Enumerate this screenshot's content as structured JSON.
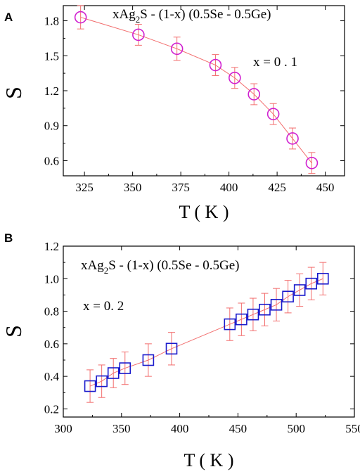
{
  "chart_data": [
    {
      "panel": "A",
      "type": "scatter",
      "title_parts": {
        "pre": "xAg",
        "sub": "2",
        "post": "S - (1-x) (0.5Se - 0.5Ge)"
      },
      "annotation": "x = 0 . 1",
      "xlabel": "T ( K )",
      "ylabel": "S",
      "xlim": [
        314,
        460
      ],
      "ylim": [
        0.47,
        1.93
      ],
      "xticks": [
        325,
        350,
        375,
        400,
        425,
        450
      ],
      "yticks": [
        0.6,
        0.9,
        1.2,
        1.5,
        1.8
      ],
      "ytick_labels": [
        "0.6",
        "0.9",
        "1.2",
        "1.5",
        "1.8"
      ],
      "marker": "circle",
      "marker_color": "#d020d0",
      "line_color": "#f26d6d",
      "error_color": "#f26d6d",
      "x": [
        323,
        353,
        373,
        393,
        403,
        413,
        423,
        433,
        443
      ],
      "y": [
        1.83,
        1.68,
        1.56,
        1.42,
        1.31,
        1.17,
        1.0,
        0.79,
        0.58
      ],
      "err": [
        0.1,
        0.09,
        0.1,
        0.09,
        0.09,
        0.09,
        0.09,
        0.09,
        0.09
      ]
    },
    {
      "panel": "B",
      "type": "scatter",
      "title_parts": {
        "pre": "xAg",
        "sub": "2",
        "post": "S - (1-x) (0.5Se - 0.5Ge)"
      },
      "annotation": "x = 0. 2",
      "xlabel": "T ( K )",
      "ylabel": "S",
      "xlim": [
        300,
        550
      ],
      "ylim": [
        0.15,
        1.2
      ],
      "xticks": [
        300,
        350,
        400,
        450,
        500,
        550
      ],
      "yticks": [
        0.2,
        0.4,
        0.6,
        0.8,
        1.0,
        1.2
      ],
      "ytick_labels": [
        "0.2",
        "0.4",
        "0.6",
        "0.8",
        "1.0",
        "1.2"
      ],
      "marker": "square",
      "marker_color": "#1a1acc",
      "line_color": "#f26d6d",
      "error_color": "#f26d6d",
      "x": [
        323,
        333,
        343,
        353,
        373,
        393,
        443,
        453,
        463,
        473,
        483,
        493,
        503,
        513,
        523
      ],
      "y": [
        0.34,
        0.37,
        0.42,
        0.45,
        0.5,
        0.57,
        0.72,
        0.75,
        0.78,
        0.81,
        0.84,
        0.89,
        0.93,
        0.97,
        1.0
      ],
      "err": [
        0.1,
        0.1,
        0.09,
        0.1,
        0.1,
        0.1,
        0.1,
        0.1,
        0.1,
        0.1,
        0.1,
        0.1,
        0.1,
        0.1,
        0.1
      ]
    }
  ]
}
